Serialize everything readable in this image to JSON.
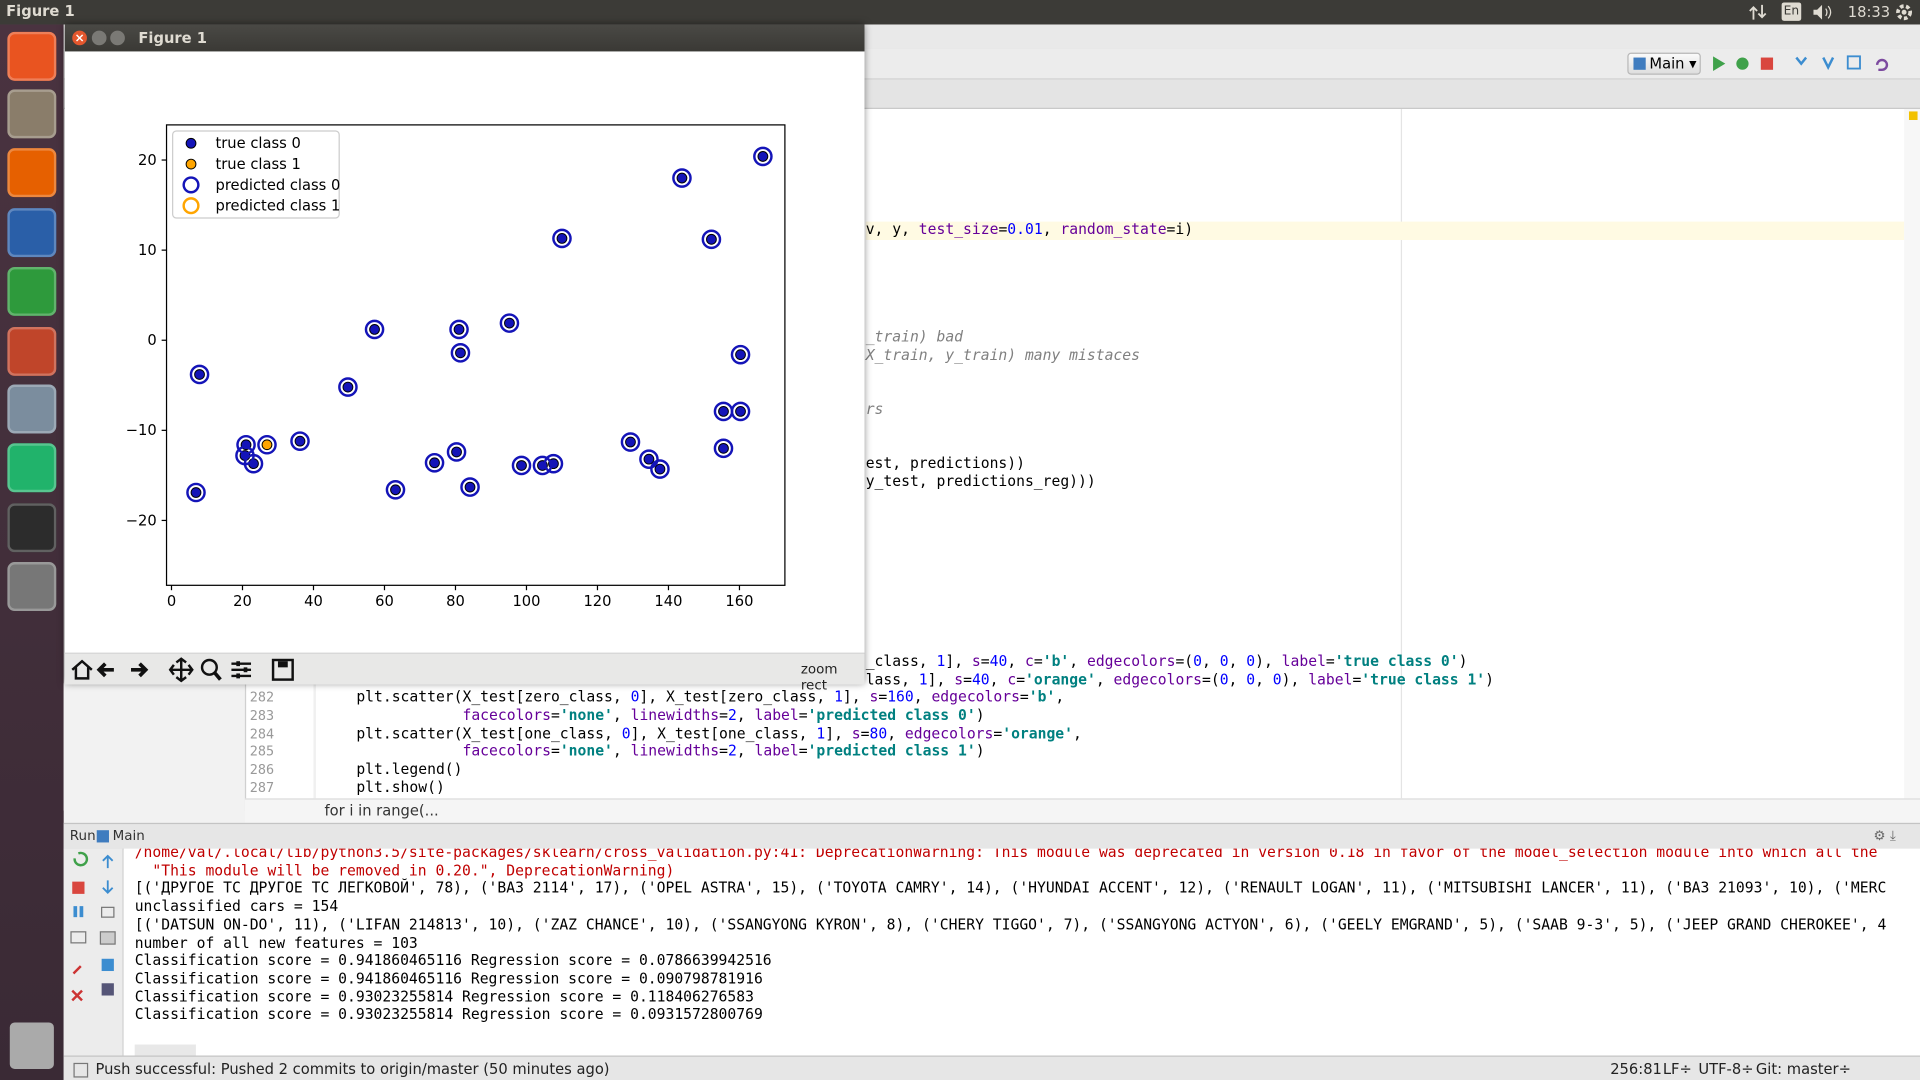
{
  "top_panel": {
    "title": "Figure 1",
    "keyboard": "En",
    "clock": "18:33"
  },
  "ide": {
    "run_config": "Main",
    "editor": {
      "fragments": [
        "v, y, test_size=0.01, random_state=i)",
        "_train) bad",
        "X_train, y_train) many mistaces",
        "rs",
        "est, predictions))",
        "y_test, predictions_reg)))",
        "_class, 1], s=40, c='b', edgecolors=(0, 0, 0), label='true class 0')",
        "lass, 1], s=40, c='orange', edgecolors=(0, 0, 0), label='true class 1')"
      ],
      "lines": [
        {
          "number": "282",
          "text": "plt.scatter(X_test[zero_class, 0], X_test[zero_class, 1], s=160, edgecolors='b',"
        },
        {
          "number": "283",
          "text": "            facecolors='none', linewidths=2, label='predicted class 0')"
        },
        {
          "number": "284",
          "text": "plt.scatter(X_test[one_class, 0], X_test[one_class, 1], s=80, edgecolors='orange',"
        },
        {
          "number": "285",
          "text": "            facecolors='none', linewidths=2, label='predicted class 1')"
        },
        {
          "number": "286",
          "text": "plt.legend()"
        },
        {
          "number": "287",
          "text": "plt.show()"
        }
      ],
      "breadcrumb": "for i in range(..."
    },
    "run_panel": {
      "tab": "Run",
      "config": "Main",
      "console": [
        "/home/val/.local/lib/python3.5/site-packages/sklearn/cross_validation.py:41: DeprecationWarning: This module was deprecated in version 0.18 in favor of the model_selection module into which all the ",
        "  \"This module will be removed in 0.20.\", DeprecationWarning)",
        "[('ДРУГОЕ ТС ДРУГОЕ ТС ЛЕГКОВОЙ', 78), ('ВАЗ 2114', 17), ('OPEL ASTRA', 15), ('TOYOTA CAMRY', 14), ('HYUNDAI ACCENT', 12), ('RENAULT LOGAN', 11), ('MITSUBISHI LANCER', 11), ('ВАЗ 21093', 10), ('MERC",
        "unclassified cars = 154",
        "[('DATSUN ON-DO', 11), ('LIFAN 214813', 10), ('ZAZ CHANCE', 10), ('SSANGYONG KYRON', 8), ('CHERY TIGGO', 7), ('SSANGYONG ACTYON', 6), ('GEELY EMGRAND', 5), ('SAAB 9-3', 5), ('JEEP GRAND CHEROKEE', 4",
        "number of all new features = 103",
        "Classification score = 0.941860465116 Regression score = 0.0786639942516",
        "Classification score = 0.941860465116 Regression score = 0.090798781916",
        "Classification score = 0.93023255814 Regression score = 0.118406276583",
        "Classification score = 0.93023255814 Regression score = 0.0931572800769"
      ]
    },
    "status_bar": {
      "message": "Push successful: Pushed 2 commits to origin/master (50 minutes ago)",
      "position": "256:81",
      "line_separator": "LF÷",
      "encoding": "UTF-8÷",
      "vcs": "Git: master÷"
    }
  },
  "figure_window": {
    "title": "Figure 1",
    "toolbar_message": "zoom rect"
  },
  "chart_data": {
    "type": "scatter",
    "xlim": [
      -1.4,
      172.8
    ],
    "ylim": [
      -27.2,
      23.9
    ],
    "xticks": [
      0,
      20,
      40,
      60,
      80,
      100,
      120,
      140,
      160
    ],
    "yticks": [
      {
        "value": -20,
        "label": "−20"
      },
      {
        "value": -10,
        "label": "−10"
      },
      0,
      10,
      20
    ],
    "legend": "upper left",
    "series": [
      {
        "name": "true class 0",
        "color": "#1414b8",
        "fill": "filled",
        "x": [
          7.9,
          6.9,
          21,
          20.7,
          23.1,
          36.2,
          49.7,
          57.2,
          63.1,
          74.1,
          80.3,
          81,
          81.4,
          84.1,
          95.2,
          98.6,
          104.5,
          107.6,
          110,
          129.3,
          134.5,
          137.6,
          143.8,
          152.1,
          155.5,
          155.5,
          160.3,
          160.3,
          166.6
        ],
        "y": [
          -3.8,
          -16.9,
          -11.6,
          -12.8,
          -13.7,
          -11.2,
          -5.2,
          1.2,
          -16.6,
          -13.6,
          -12.4,
          1.2,
          -1.4,
          -16.3,
          1.9,
          -13.9,
          -13.9,
          -13.7,
          11.3,
          -11.3,
          -13.2,
          -14.3,
          18,
          11.2,
          -7.9,
          -12,
          -1.6,
          -7.9,
          20.4
        ]
      },
      {
        "name": "true class 1",
        "color": "#ffa500",
        "fill": "filled",
        "x": [
          26.9
        ],
        "y": [
          -11.6
        ]
      },
      {
        "name": "predicted class 0",
        "color": "#1414b8",
        "fill": "none",
        "x": [
          7.9,
          6.9,
          21,
          20.7,
          23.1,
          26.9,
          36.2,
          49.7,
          57.2,
          63.1,
          74.1,
          80.3,
          81,
          81.4,
          84.1,
          95.2,
          98.6,
          104.5,
          107.6,
          110,
          129.3,
          134.5,
          137.6,
          143.8,
          152.1,
          155.5,
          155.5,
          160.3,
          160.3,
          166.6
        ],
        "y": [
          -3.8,
          -16.9,
          -11.6,
          -12.8,
          -13.7,
          -11.6,
          -11.2,
          -5.2,
          1.2,
          -16.6,
          -13.6,
          -12.4,
          1.2,
          -1.4,
          -16.3,
          1.9,
          -13.9,
          -13.9,
          -13.7,
          11.3,
          -11.3,
          -13.2,
          -14.3,
          18,
          11.2,
          -7.9,
          -12,
          -1.6,
          -7.9,
          20.4
        ]
      },
      {
        "name": "predicted class 1",
        "color": "#ffa500",
        "fill": "none",
        "x": [],
        "y": []
      }
    ]
  }
}
